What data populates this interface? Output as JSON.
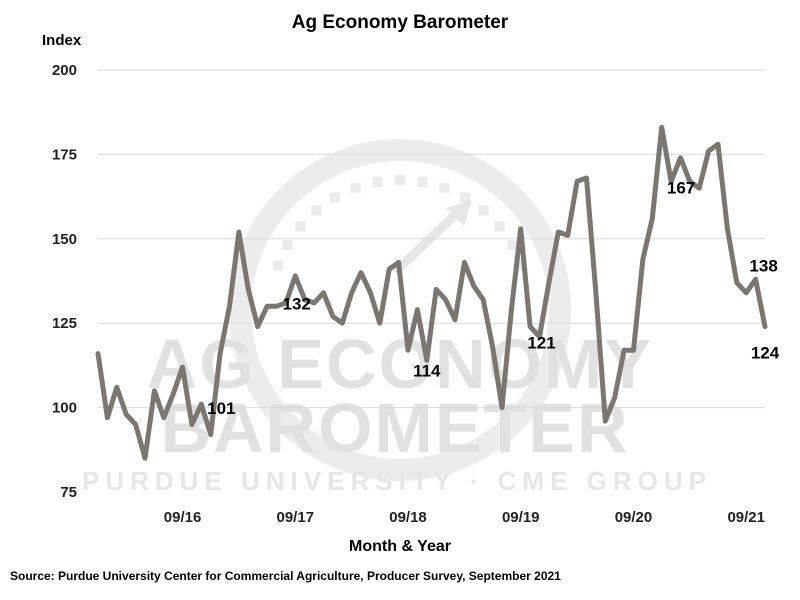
{
  "chart_data": {
    "type": "line",
    "title": "Ag Economy Barometer",
    "ylabel": "Index",
    "xlabel": "Month & Year",
    "source": "Source: Purdue University Center for Commercial Agriculture, Producer Survey, September 2021",
    "ylim": [
      75,
      200
    ],
    "yticks": [
      75,
      100,
      125,
      150,
      175,
      200
    ],
    "xticks": [
      {
        "label": "09/16",
        "index": 9
      },
      {
        "label": "09/17",
        "index": 21
      },
      {
        "label": "09/18",
        "index": 33
      },
      {
        "label": "09/19",
        "index": 45
      },
      {
        "label": "09/20",
        "index": 57
      },
      {
        "label": "09/21",
        "index": 69
      }
    ],
    "grid": "horizontal",
    "line_color": "#7b7670",
    "series": [
      {
        "values": [
          116,
          97,
          106,
          98,
          95,
          85,
          105,
          97,
          104,
          112,
          95,
          101,
          92,
          116,
          130,
          152,
          135,
          124,
          130,
          130,
          131,
          139,
          132,
          131,
          134,
          127,
          125,
          134,
          140,
          134,
          125,
          141,
          143,
          117,
          129,
          114,
          135,
          132,
          126,
          143,
          136,
          132,
          118,
          100,
          129,
          153,
          124,
          121,
          137,
          152,
          151,
          167,
          168,
          134,
          96,
          103,
          117,
          117,
          144,
          156,
          183,
          167,
          174,
          167,
          165,
          176,
          178,
          153,
          137,
          134,
          138,
          124
        ]
      }
    ],
    "annotations": [
      {
        "text": "101",
        "index": 11
      },
      {
        "text": "132",
        "index": 22
      },
      {
        "text": "114",
        "index": 35
      },
      {
        "text": "121",
        "index": 47
      },
      {
        "text": "167",
        "index": 61
      },
      {
        "text": "138",
        "index": 70
      },
      {
        "text": "124",
        "index": 71
      }
    ],
    "watermark": {
      "line1": "AG ECONOMY",
      "line2": "BAROMETER",
      "line3": "PURDUE UNIVERSITY · CME GROUP"
    }
  }
}
